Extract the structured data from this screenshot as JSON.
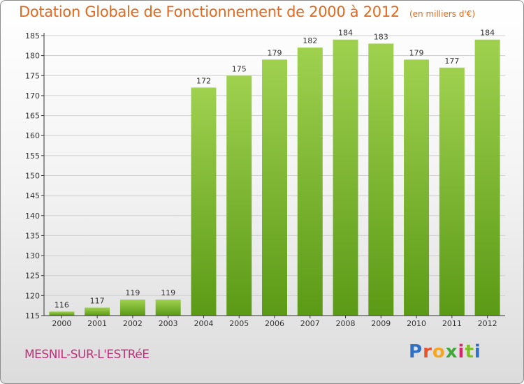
{
  "title": "Dotation Globale de Fonctionnement de 2000 à 2012",
  "unit_note": "(en milliers d'€)",
  "commune": "MESNIL-SUR-L'ESTRéE",
  "logo": {
    "text": "Proxiti",
    "letter_colors": [
      "#2f6fc4",
      "#e8522c",
      "#f5a623",
      "#43a83c",
      "#d8266c",
      "#7fbf2a",
      "#2f6fc4"
    ]
  },
  "colors": {
    "title": "#e2691d",
    "commune": "#c0307a",
    "bar_light": "#9fd14f",
    "bar_dark": "#5b9a16",
    "axis": "#333333",
    "grid": "#d0d0d0"
  },
  "chart_data": {
    "type": "bar",
    "title": "Dotation Globale de Fonctionnement de 2000 à 2012",
    "xlabel": "",
    "ylabel": "",
    "categories": [
      "2000",
      "2001",
      "2002",
      "2003",
      "2004",
      "2005",
      "2006",
      "2007",
      "2008",
      "2009",
      "2010",
      "2011",
      "2012"
    ],
    "values": [
      116,
      117,
      119,
      119,
      172,
      175,
      179,
      182,
      184,
      183,
      179,
      177,
      184
    ],
    "ylim": [
      115,
      185
    ],
    "yticks": [
      115,
      120,
      125,
      130,
      135,
      140,
      145,
      150,
      155,
      160,
      165,
      170,
      175,
      180,
      185
    ],
    "grid": true,
    "legend": "none"
  }
}
